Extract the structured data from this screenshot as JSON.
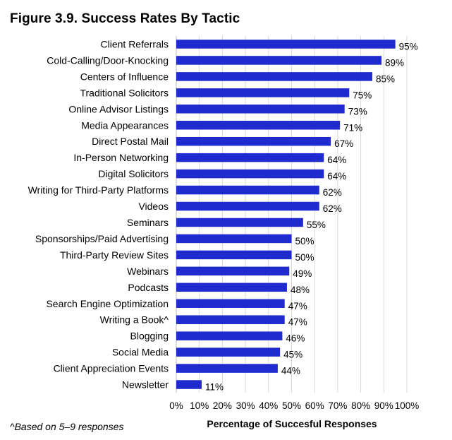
{
  "title": "Figure 3.9. Success Rates By Tactic",
  "footnote": "^Based on 5–9 responses",
  "chart_data": {
    "type": "bar",
    "orientation": "horizontal",
    "title": "Figure 3.9. Success Rates By Tactic",
    "xlabel": "Percentage of Succesful Responses",
    "ylabel": "",
    "xlim": [
      0,
      100
    ],
    "x_ticks": [
      "0%",
      "10%",
      "20%",
      "30%",
      "40%",
      "50%",
      "60%",
      "70%",
      "80%",
      "90%",
      "100%"
    ],
    "grid": "vertical",
    "bar_color": "#1f2bcf",
    "categories": [
      "Client Referrals",
      "Cold-Calling/Door-Knocking",
      "Centers of Influence",
      "Traditional Solicitors",
      "Online Advisor Listings",
      "Media Appearances",
      "Direct Postal Mail",
      "In-Person Networking",
      "Digital Solicitors",
      "Writing for Third-Party Platforms",
      "Videos",
      "Seminars",
      "Sponsorships/Paid Advertising",
      "Third-Party Review Sites",
      "Webinars",
      "Podcasts",
      "Search Engine Optimization",
      "Writing a Book^",
      "Blogging",
      "Social Media",
      "Client Appreciation Events",
      "Newsletter"
    ],
    "values": [
      95,
      89,
      85,
      75,
      73,
      71,
      67,
      64,
      64,
      62,
      62,
      55,
      50,
      50,
      49,
      48,
      47,
      47,
      46,
      45,
      44,
      11
    ],
    "value_labels": [
      "95%",
      "89%",
      "85%",
      "75%",
      "73%",
      "71%",
      "67%",
      "64%",
      "64%",
      "62%",
      "62%",
      "55%",
      "50%",
      "50%",
      "49%",
      "48%",
      "47%",
      "47%",
      "46%",
      "45%",
      "44%",
      "11%"
    ]
  }
}
